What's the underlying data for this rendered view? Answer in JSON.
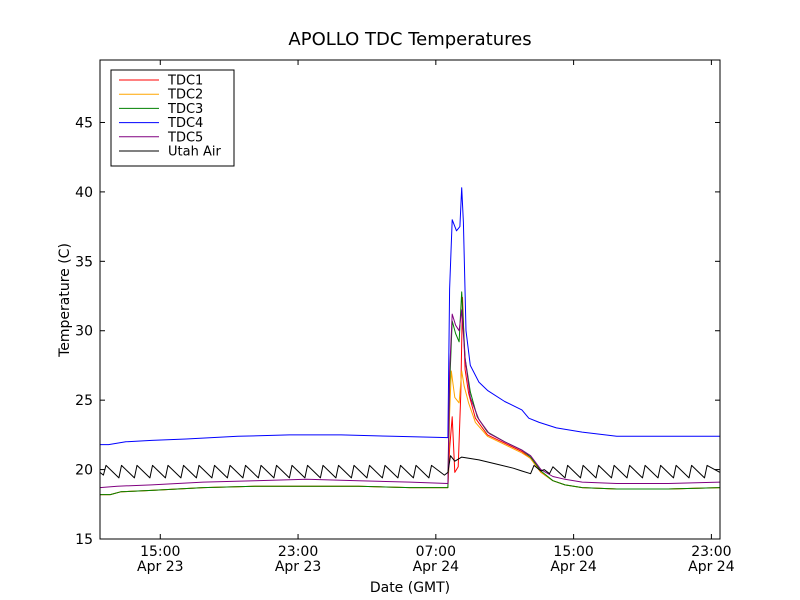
{
  "chart_data": {
    "type": "line",
    "title": "APOLLO TDC Temperatures",
    "xlabel": "Date (GMT)",
    "ylabel": "Temperature (C)",
    "xlim": [
      0,
      36
    ],
    "ylim": [
      15,
      49.5
    ],
    "y_ticks": [
      15,
      20,
      25,
      30,
      35,
      40,
      45
    ],
    "x_ticks": [
      {
        "x": 3.5,
        "time": "15:00",
        "date": "Apr 23"
      },
      {
        "x": 11.5,
        "time": "23:00",
        "date": "Apr 23"
      },
      {
        "x": 19.5,
        "time": "07:00",
        "date": "Apr 24"
      },
      {
        "x": 27.5,
        "time": "15:00",
        "date": "Apr 24"
      },
      {
        "x": 35.5,
        "time": "23:00",
        "date": "Apr 24"
      }
    ],
    "grid": false,
    "legend_position": "top-left",
    "series": [
      {
        "name": "TDC1",
        "color": "#ff0000",
        "points": [
          [
            0,
            18.2
          ],
          [
            0.6,
            18.2
          ],
          [
            1.2,
            18.4
          ],
          [
            3,
            18.5
          ],
          [
            6,
            18.7
          ],
          [
            9,
            18.8
          ],
          [
            12,
            18.8
          ],
          [
            15,
            18.8
          ],
          [
            18,
            18.7
          ],
          [
            20.2,
            18.7
          ],
          [
            20.3,
            21.5
          ],
          [
            20.45,
            23.8
          ],
          [
            20.6,
            19.8
          ],
          [
            20.8,
            20.2
          ],
          [
            20.95,
            25.5
          ],
          [
            21.05,
            32.4
          ],
          [
            21.2,
            27.2
          ],
          [
            21.4,
            25.5
          ],
          [
            21.8,
            23.7
          ],
          [
            22.5,
            22.5
          ],
          [
            23.5,
            21.9
          ],
          [
            24.5,
            21.3
          ],
          [
            25,
            20.8
          ],
          [
            25.6,
            19.8
          ],
          [
            26.3,
            19.2
          ],
          [
            27,
            18.9
          ],
          [
            28,
            18.7
          ],
          [
            30,
            18.6
          ],
          [
            33,
            18.6
          ],
          [
            36,
            18.7
          ]
        ]
      },
      {
        "name": "TDC2",
        "color": "#ffa500",
        "points": [
          [
            0,
            18.2
          ],
          [
            0.6,
            18.2
          ],
          [
            1.2,
            18.4
          ],
          [
            3,
            18.5
          ],
          [
            6,
            18.7
          ],
          [
            9,
            18.8
          ],
          [
            12,
            18.8
          ],
          [
            15,
            18.8
          ],
          [
            18,
            18.7
          ],
          [
            20.2,
            18.7
          ],
          [
            20.3,
            24
          ],
          [
            20.4,
            27.1
          ],
          [
            20.6,
            25.2
          ],
          [
            20.85,
            24.8
          ],
          [
            21,
            27.1
          ],
          [
            21.15,
            26
          ],
          [
            21.4,
            24.8
          ],
          [
            21.8,
            23.4
          ],
          [
            22.5,
            22.4
          ],
          [
            23.5,
            21.8
          ],
          [
            24.5,
            21.2
          ],
          [
            25,
            20.8
          ],
          [
            25.6,
            19.8
          ],
          [
            26.3,
            19.2
          ],
          [
            27,
            18.9
          ],
          [
            28,
            18.7
          ],
          [
            30,
            18.6
          ],
          [
            33,
            18.6
          ],
          [
            36,
            18.7
          ]
        ]
      },
      {
        "name": "TDC3",
        "color": "#008000",
        "points": [
          [
            0,
            18.2
          ],
          [
            0.6,
            18.2
          ],
          [
            1.2,
            18.4
          ],
          [
            3,
            18.5
          ],
          [
            6,
            18.7
          ],
          [
            9,
            18.8
          ],
          [
            12,
            18.8
          ],
          [
            15,
            18.8
          ],
          [
            18,
            18.7
          ],
          [
            20.2,
            18.7
          ],
          [
            20.3,
            26
          ],
          [
            20.45,
            30.7
          ],
          [
            20.65,
            29.8
          ],
          [
            20.85,
            29.2
          ],
          [
            21,
            32.8
          ],
          [
            21.2,
            28
          ],
          [
            21.5,
            25.6
          ],
          [
            21.9,
            23.8
          ],
          [
            22.5,
            22.7
          ],
          [
            23.5,
            22
          ],
          [
            24.5,
            21.4
          ],
          [
            25,
            20.9
          ],
          [
            25.6,
            19.9
          ],
          [
            26.3,
            19.2
          ],
          [
            27,
            18.9
          ],
          [
            28,
            18.7
          ],
          [
            30,
            18.6
          ],
          [
            33,
            18.6
          ],
          [
            36,
            18.7
          ]
        ]
      },
      {
        "name": "TDC4",
        "color": "#0000ff",
        "points": [
          [
            0,
            21.8
          ],
          [
            0.5,
            21.8
          ],
          [
            1.5,
            22
          ],
          [
            3,
            22.1
          ],
          [
            5,
            22.2
          ],
          [
            8,
            22.4
          ],
          [
            11,
            22.5
          ],
          [
            14,
            22.5
          ],
          [
            17,
            22.4
          ],
          [
            20.2,
            22.3
          ],
          [
            20.3,
            33
          ],
          [
            20.45,
            38
          ],
          [
            20.7,
            37.2
          ],
          [
            20.9,
            37.5
          ],
          [
            21,
            40.3
          ],
          [
            21.1,
            37.8
          ],
          [
            21.25,
            30
          ],
          [
            21.5,
            27.5
          ],
          [
            22,
            26.3
          ],
          [
            22.5,
            25.7
          ],
          [
            23.5,
            24.9
          ],
          [
            24.5,
            24.3
          ],
          [
            24.9,
            23.7
          ],
          [
            25.5,
            23.4
          ],
          [
            26.5,
            23
          ],
          [
            28,
            22.7
          ],
          [
            30,
            22.4
          ],
          [
            33,
            22.4
          ],
          [
            36,
            22.4
          ]
        ]
      },
      {
        "name": "TDC5",
        "color": "#800080",
        "points": [
          [
            0,
            18.7
          ],
          [
            1,
            18.8
          ],
          [
            3,
            18.9
          ],
          [
            6,
            19.1
          ],
          [
            9,
            19.2
          ],
          [
            12,
            19.3
          ],
          [
            15,
            19.2
          ],
          [
            18,
            19.1
          ],
          [
            20.2,
            19.0
          ],
          [
            20.3,
            27
          ],
          [
            20.45,
            31.2
          ],
          [
            20.65,
            30.4
          ],
          [
            20.85,
            30
          ],
          [
            21,
            31.5
          ],
          [
            21.2,
            28
          ],
          [
            21.5,
            25.2
          ],
          [
            22,
            23.6
          ],
          [
            22.6,
            22.6
          ],
          [
            23.5,
            22
          ],
          [
            24.5,
            21.4
          ],
          [
            25,
            21
          ],
          [
            25.6,
            20
          ],
          [
            26.3,
            19.5
          ],
          [
            27,
            19.3
          ],
          [
            28,
            19.1
          ],
          [
            30,
            19.0
          ],
          [
            33,
            19.0
          ],
          [
            36,
            19.1
          ]
        ]
      },
      {
        "name": "Utah Air",
        "color": "#000000",
        "points": [
          [
            0,
            19.8
          ],
          [
            0.2,
            19.6
          ],
          [
            0.35,
            20.3
          ],
          [
            1.1,
            19.4
          ],
          [
            1.25,
            20.3
          ],
          [
            2.0,
            19.4
          ],
          [
            2.15,
            20.3
          ],
          [
            2.9,
            19.4
          ],
          [
            3.05,
            20.3
          ],
          [
            3.8,
            19.4
          ],
          [
            3.95,
            20.3
          ],
          [
            4.7,
            19.4
          ],
          [
            4.85,
            20.3
          ],
          [
            5.6,
            19.4
          ],
          [
            5.75,
            20.3
          ],
          [
            6.5,
            19.4
          ],
          [
            6.65,
            20.3
          ],
          [
            7.4,
            19.4
          ],
          [
            7.55,
            20.3
          ],
          [
            8.3,
            19.4
          ],
          [
            8.45,
            20.3
          ],
          [
            9.2,
            19.4
          ],
          [
            9.35,
            20.3
          ],
          [
            10.1,
            19.4
          ],
          [
            10.25,
            20.3
          ],
          [
            11.0,
            19.4
          ],
          [
            11.15,
            20.3
          ],
          [
            11.9,
            19.4
          ],
          [
            12.05,
            20.3
          ],
          [
            12.8,
            19.4
          ],
          [
            12.95,
            20.3
          ],
          [
            13.7,
            19.4
          ],
          [
            13.85,
            20.3
          ],
          [
            14.6,
            19.4
          ],
          [
            14.75,
            20.3
          ],
          [
            15.5,
            19.4
          ],
          [
            15.65,
            20.3
          ],
          [
            16.4,
            19.4
          ],
          [
            16.55,
            20.3
          ],
          [
            17.3,
            19.4
          ],
          [
            17.45,
            20.3
          ],
          [
            18.2,
            19.4
          ],
          [
            18.35,
            20.3
          ],
          [
            19.1,
            19.4
          ],
          [
            19.25,
            20.3
          ],
          [
            20.0,
            19.6
          ],
          [
            20.2,
            19.8
          ],
          [
            20.35,
            21
          ],
          [
            20.6,
            20.6
          ],
          [
            21.0,
            20.9
          ],
          [
            22,
            20.7
          ],
          [
            23,
            20.4
          ],
          [
            24,
            20.1
          ],
          [
            24.5,
            19.9
          ],
          [
            25.0,
            19.7
          ],
          [
            25.2,
            20.3
          ],
          [
            25.6,
            19.9
          ],
          [
            25.8,
            20.0
          ],
          [
            26.1,
            19.7
          ],
          [
            26.3,
            20.2
          ],
          [
            27.0,
            19.4
          ],
          [
            27.15,
            20.3
          ],
          [
            27.9,
            19.4
          ],
          [
            28.05,
            20.3
          ],
          [
            28.8,
            19.4
          ],
          [
            28.95,
            20.3
          ],
          [
            29.7,
            19.4
          ],
          [
            29.85,
            20.3
          ],
          [
            30.6,
            19.4
          ],
          [
            30.75,
            20.3
          ],
          [
            31.5,
            19.4
          ],
          [
            31.65,
            20.3
          ],
          [
            32.4,
            19.4
          ],
          [
            32.55,
            20.3
          ],
          [
            33.3,
            19.4
          ],
          [
            33.45,
            20.3
          ],
          [
            34.2,
            19.4
          ],
          [
            34.35,
            20.3
          ],
          [
            35.1,
            19.4
          ],
          [
            35.25,
            20.3
          ],
          [
            36,
            19.8
          ]
        ]
      }
    ]
  }
}
